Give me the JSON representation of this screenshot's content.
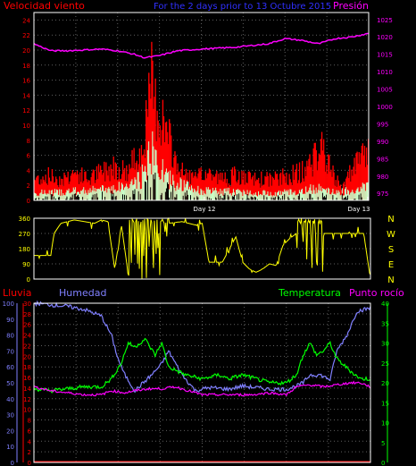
{
  "header": {
    "wind_title": "Velocidad viento",
    "subtitle": "For the 2 days prior to 13 Octubre 2015",
    "pressure_title": "Presión"
  },
  "bottom_titles": {
    "rain": "Lluvia",
    "humidity": "Humedad",
    "temperature": "Temperatura",
    "dewpoint": "Punto rocío"
  },
  "colors": {
    "wind_gust": "#ff0000",
    "wind_avg": "#c8ffc8",
    "wind_low": "#ffffff",
    "pressure": "#ff00ff",
    "direction": "#ffff00",
    "humidity": "#8080ff",
    "temperature": "#00ff00",
    "dewpoint": "#ff00ff",
    "rain": "#ff0000",
    "frame": "#ffffff",
    "grid": "#606060"
  },
  "chart_data": [
    {
      "type": "bar",
      "title": "Velocidad viento",
      "left_axis": {
        "label": "Velocidad viento",
        "ticks": [
          "0",
          "2",
          "4",
          "6",
          "8",
          "10",
          "12",
          "14",
          "16",
          "18",
          "20",
          "22",
          "24"
        ],
        "ylim": [
          0,
          25
        ]
      },
      "right_axis": {
        "label": "Presión",
        "ticks": [
          "975",
          "980",
          "985",
          "990",
          "995",
          "1000",
          "1005",
          "1010",
          "1015",
          "1020",
          "1025"
        ],
        "ylim": [
          973,
          1027
        ]
      },
      "x_labels": [
        "Day 12",
        "Day 13"
      ],
      "series": [
        {
          "name": "Velocidad viento",
          "role": "gust",
          "values": [
            [
              0,
              3
            ],
            [
              0.04,
              3.5
            ],
            [
              0.08,
              3
            ],
            [
              0.12,
              4
            ],
            [
              0.16,
              3
            ],
            [
              0.2,
              4
            ],
            [
              0.24,
              5
            ],
            [
              0.28,
              4
            ],
            [
              0.3,
              6
            ],
            [
              0.32,
              7
            ],
            [
              0.34,
              12
            ],
            [
              0.35,
              17
            ],
            [
              0.36,
              14
            ],
            [
              0.38,
              12
            ],
            [
              0.4,
              9
            ],
            [
              0.42,
              6
            ],
            [
              0.44,
              4
            ],
            [
              0.48,
              3
            ],
            [
              0.52,
              4
            ],
            [
              0.56,
              3
            ],
            [
              0.6,
              3.5
            ],
            [
              0.64,
              3
            ],
            [
              0.68,
              3
            ],
            [
              0.72,
              3
            ],
            [
              0.76,
              3.5
            ],
            [
              0.8,
              4
            ],
            [
              0.84,
              6
            ],
            [
              0.86,
              8
            ],
            [
              0.88,
              5
            ],
            [
              0.9,
              3
            ],
            [
              0.92,
              2
            ],
            [
              0.95,
              4
            ],
            [
              0.98,
              6
            ],
            [
              1,
              7
            ]
          ]
        },
        {
          "name": "",
          "role": "average",
          "values": [
            [
              0,
              1
            ],
            [
              0.1,
              1.2
            ],
            [
              0.2,
              1.5
            ],
            [
              0.28,
              2
            ],
            [
              0.32,
              3
            ],
            [
              0.35,
              7
            ],
            [
              0.37,
              5
            ],
            [
              0.4,
              3
            ],
            [
              0.45,
              2
            ],
            [
              0.5,
              1.3
            ],
            [
              0.6,
              1.2
            ],
            [
              0.7,
              1
            ],
            [
              0.8,
              1.2
            ],
            [
              0.86,
              2
            ],
            [
              0.9,
              1
            ],
            [
              0.95,
              1.5
            ],
            [
              1,
              2
            ]
          ]
        },
        {
          "name": "Presión",
          "role": "pressure",
          "values": [
            [
              0,
              1018
            ],
            [
              0.05,
              1016
            ],
            [
              0.1,
              1016
            ],
            [
              0.2,
              1016.5
            ],
            [
              0.25,
              1016
            ],
            [
              0.3,
              1015
            ],
            [
              0.33,
              1014
            ],
            [
              0.37,
              1014.5
            ],
            [
              0.43,
              1016
            ],
            [
              0.5,
              1016.5
            ],
            [
              0.6,
              1017
            ],
            [
              0.7,
              1018
            ],
            [
              0.75,
              1019.5
            ],
            [
              0.8,
              1019
            ],
            [
              0.85,
              1018
            ],
            [
              0.9,
              1019.5
            ],
            [
              0.95,
              1020
            ],
            [
              1,
              1021
            ]
          ]
        }
      ]
    },
    {
      "type": "line",
      "title": "",
      "left_axis": {
        "ticks": [
          "0",
          "90",
          "180",
          "270",
          "360"
        ],
        "ylim": [
          0,
          360
        ]
      },
      "right_axis": {
        "ticks": [
          "N",
          "W",
          "S",
          "E",
          "N"
        ]
      },
      "series": [
        {
          "name": "",
          "role": "direction",
          "values": [
            [
              0,
              140
            ],
            [
              0.05,
              140
            ],
            [
              0.06,
              270
            ],
            [
              0.08,
              330
            ],
            [
              0.12,
              350
            ],
            [
              0.18,
              330
            ],
            [
              0.2,
              350
            ],
            [
              0.22,
              340
            ],
            [
              0.24,
              60
            ],
            [
              0.26,
              320
            ],
            [
              0.28,
              30
            ],
            [
              0.3,
              340
            ],
            [
              0.32,
              50
            ],
            [
              0.34,
              300
            ],
            [
              0.36,
              40
            ],
            [
              0.38,
              340
            ],
            [
              0.4,
              330
            ],
            [
              0.44,
              340
            ],
            [
              0.48,
              320
            ],
            [
              0.5,
              330
            ],
            [
              0.52,
              100
            ],
            [
              0.56,
              100
            ],
            [
              0.6,
              250
            ],
            [
              0.62,
              100
            ],
            [
              0.64,
              60
            ],
            [
              0.66,
              40
            ],
            [
              0.68,
              60
            ],
            [
              0.7,
              90
            ],
            [
              0.72,
              80
            ],
            [
              0.74,
              200
            ],
            [
              0.76,
              240
            ],
            [
              0.78,
              270
            ],
            [
              0.8,
              230
            ],
            [
              0.82,
              250
            ],
            [
              0.84,
              220
            ],
            [
              0.86,
              270
            ],
            [
              0.9,
              270
            ],
            [
              0.95,
              270
            ],
            [
              0.98,
              270
            ],
            [
              1,
              0
            ]
          ]
        }
      ]
    },
    {
      "type": "line",
      "title": "",
      "left_axis_rain": {
        "label": "Lluvia",
        "ticks": [
          "0",
          "2",
          "4",
          "6",
          "8",
          "10",
          "12",
          "14",
          "16",
          "18",
          "20",
          "22",
          "24",
          "26",
          "28",
          "30"
        ]
      },
      "left_axis_humidity": {
        "label": "Humedad",
        "ticks": [
          "0",
          "10",
          "20",
          "30",
          "40",
          "50",
          "60",
          "70",
          "80",
          "90",
          "100"
        ],
        "ylim": [
          0,
          100
        ]
      },
      "right_axis_temperature": {
        "label": "Temperatura",
        "ticks": [
          "0",
          "5",
          "10",
          "15",
          "20",
          "25",
          "30",
          "35",
          "40"
        ],
        "ylim": [
          0,
          40
        ]
      },
      "series": [
        {
          "name": "Humedad",
          "role": "humidity",
          "values": [
            [
              0,
              100
            ],
            [
              0.05,
              99
            ],
            [
              0.1,
              98
            ],
            [
              0.15,
              96
            ],
            [
              0.2,
              92
            ],
            [
              0.23,
              80
            ],
            [
              0.25,
              65
            ],
            [
              0.27,
              55
            ],
            [
              0.3,
              45
            ],
            [
              0.35,
              55
            ],
            [
              0.38,
              62
            ],
            [
              0.4,
              70
            ],
            [
              0.44,
              55
            ],
            [
              0.48,
              45
            ],
            [
              0.52,
              47
            ],
            [
              0.58,
              46
            ],
            [
              0.62,
              48
            ],
            [
              0.66,
              47
            ],
            [
              0.7,
              46
            ],
            [
              0.75,
              46
            ],
            [
              0.78,
              48
            ],
            [
              0.8,
              50
            ],
            [
              0.82,
              55
            ],
            [
              0.85,
              55
            ],
            [
              0.88,
              52
            ],
            [
              0.9,
              70
            ],
            [
              0.93,
              80
            ],
            [
              0.96,
              95
            ],
            [
              1,
              97
            ]
          ]
        },
        {
          "name": "Temperatura",
          "role": "temperature",
          "values": [
            [
              0,
              18.5
            ],
            [
              0.05,
              18
            ],
            [
              0.1,
              18.5
            ],
            [
              0.15,
              19
            ],
            [
              0.2,
              19
            ],
            [
              0.23,
              21
            ],
            [
              0.26,
              25
            ],
            [
              0.28,
              30
            ],
            [
              0.3,
              29
            ],
            [
              0.33,
              31
            ],
            [
              0.36,
              27
            ],
            [
              0.38,
              30
            ],
            [
              0.4,
              24
            ],
            [
              0.45,
              22
            ],
            [
              0.5,
              21
            ],
            [
              0.55,
              22
            ],
            [
              0.58,
              21
            ],
            [
              0.62,
              22
            ],
            [
              0.66,
              21
            ],
            [
              0.7,
              20
            ],
            [
              0.75,
              20
            ],
            [
              0.78,
              22
            ],
            [
              0.8,
              27
            ],
            [
              0.82,
              30
            ],
            [
              0.84,
              27
            ],
            [
              0.86,
              28
            ],
            [
              0.88,
              30
            ],
            [
              0.9,
              26
            ],
            [
              0.94,
              23
            ],
            [
              0.97,
              21
            ],
            [
              1,
              21
            ]
          ]
        },
        {
          "name": "Punto rocío",
          "role": "dewpoint",
          "values": [
            [
              0,
              19
            ],
            [
              0.05,
              18
            ],
            [
              0.1,
              17.5
            ],
            [
              0.15,
              17
            ],
            [
              0.2,
              17
            ],
            [
              0.23,
              18
            ],
            [
              0.27,
              17.5
            ],
            [
              0.3,
              18
            ],
            [
              0.34,
              18.5
            ],
            [
              0.38,
              18.5
            ],
            [
              0.42,
              19
            ],
            [
              0.46,
              18
            ],
            [
              0.5,
              17
            ],
            [
              0.55,
              17
            ],
            [
              0.6,
              17
            ],
            [
              0.65,
              17
            ],
            [
              0.7,
              17.5
            ],
            [
              0.75,
              17
            ],
            [
              0.78,
              19
            ],
            [
              0.82,
              19.5
            ],
            [
              0.86,
              19
            ],
            [
              0.9,
              19.5
            ],
            [
              0.94,
              20
            ],
            [
              0.97,
              20
            ],
            [
              1,
              19
            ]
          ]
        },
        {
          "name": "Lluvia",
          "role": "rain",
          "values": [
            [
              0,
              0
            ],
            [
              1,
              0
            ]
          ]
        }
      ]
    }
  ]
}
